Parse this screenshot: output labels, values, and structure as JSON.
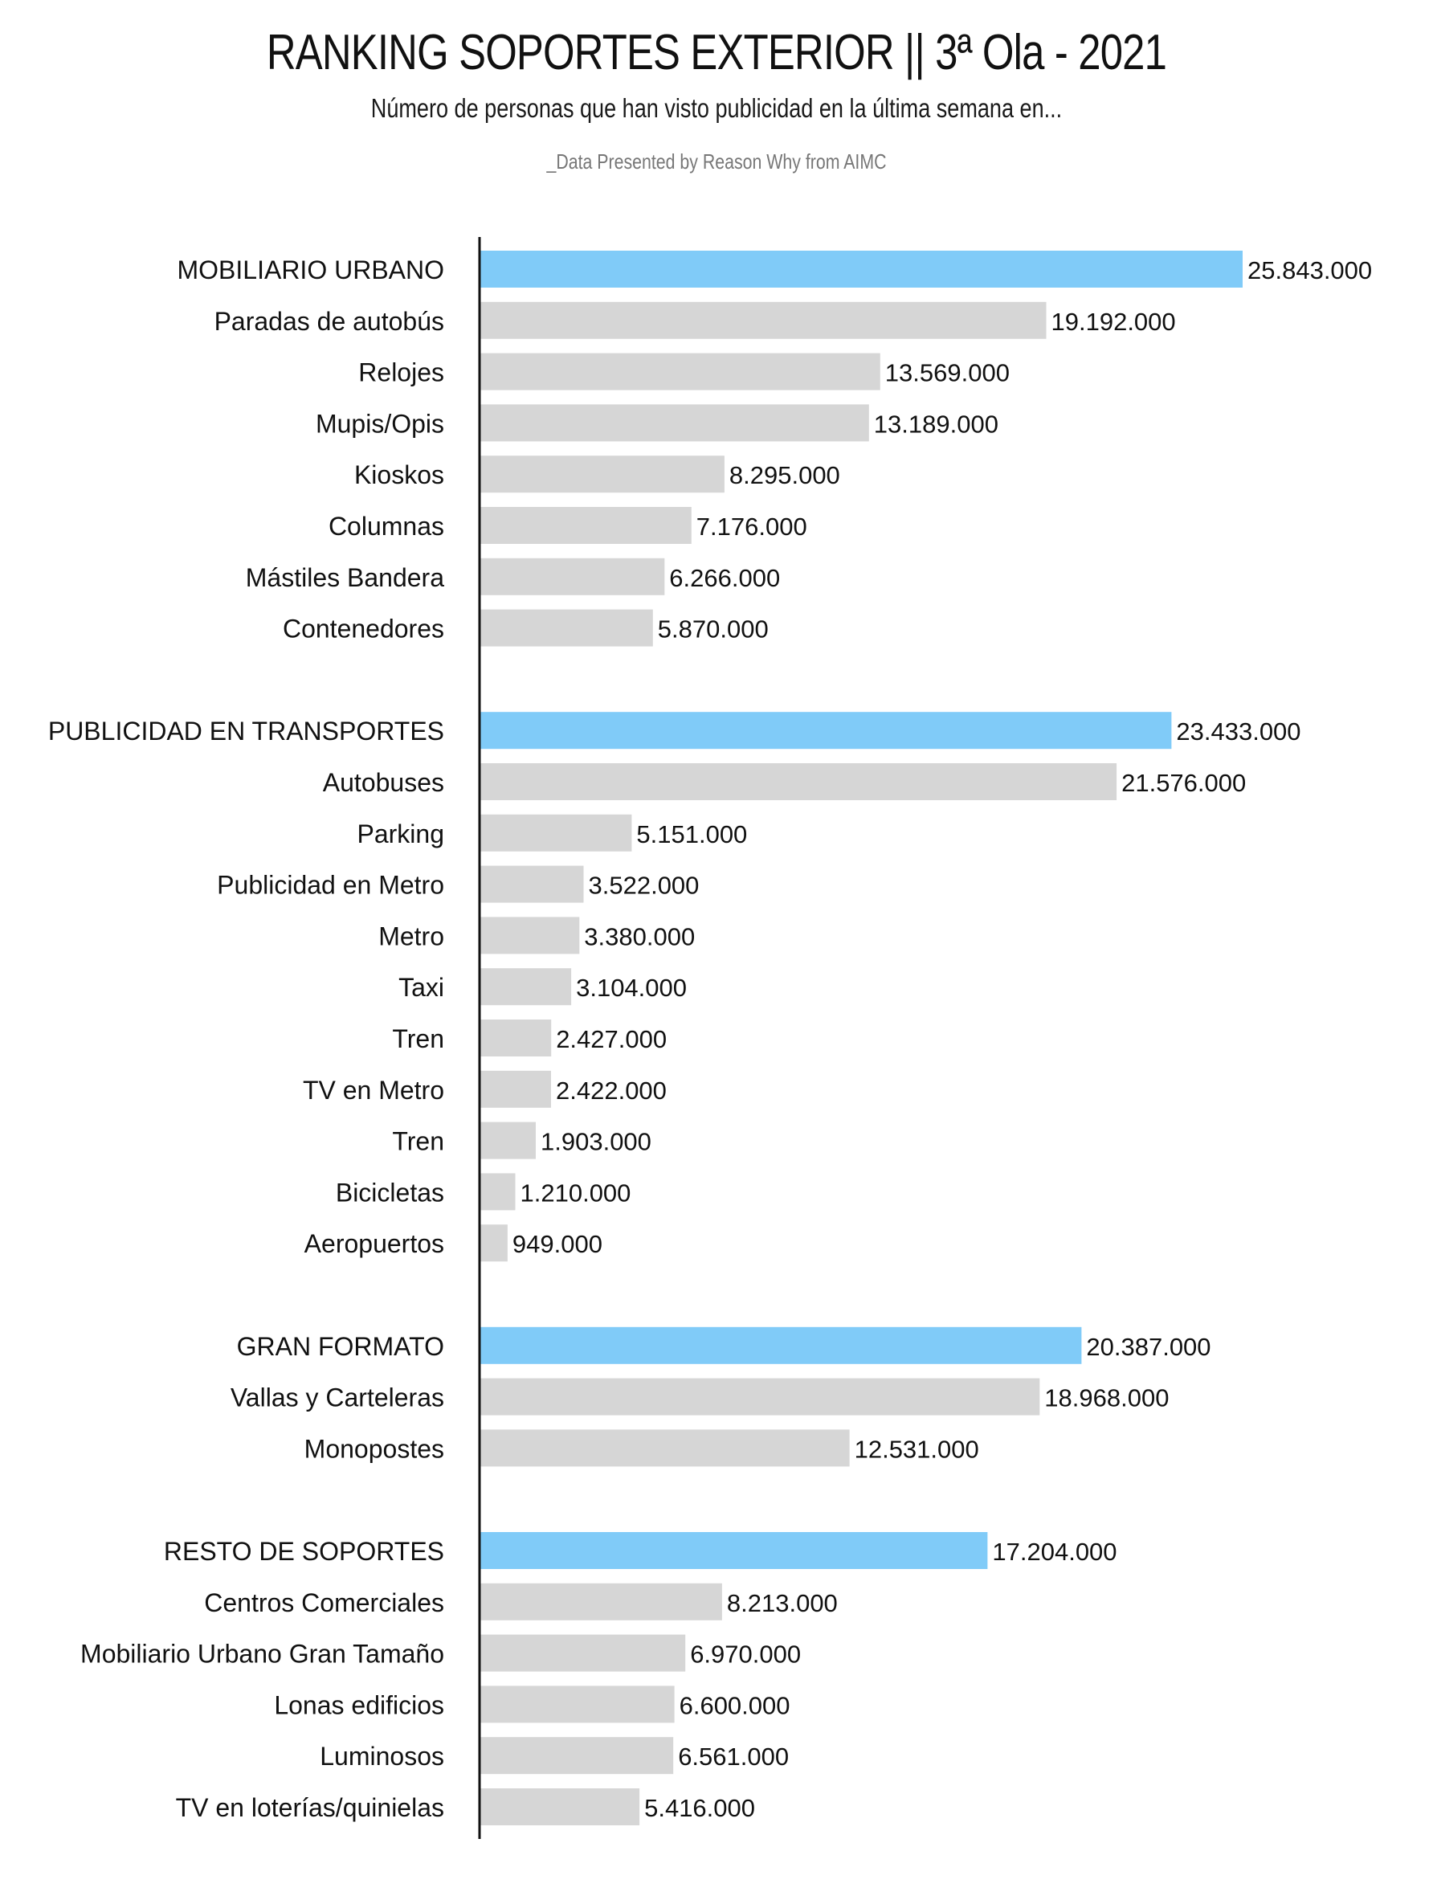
{
  "chart_data": {
    "type": "bar",
    "orientation": "horizontal",
    "title": "RANKING SOPORTES EXTERIOR || 3ª Ola - 2021",
    "subtitle": "Número de personas que han visto publicidad en la última semana en...",
    "source": "_Data Presented by Reason Why from AIMC",
    "grid": false,
    "colors": {
      "category": "#80CBF8",
      "item": "#D6D6D6",
      "axis": "#111111"
    },
    "groups": [
      {
        "label": "MOBILIARIO URBANO",
        "value": 25843000,
        "display": "25.843.000",
        "items": [
          {
            "label": "Paradas de autobús",
            "value": 19192000,
            "display": "19.192.000"
          },
          {
            "label": "Relojes",
            "value": 13569000,
            "display": "13.569.000"
          },
          {
            "label": "Mupis/Opis",
            "value": 13189000,
            "display": "13.189.000"
          },
          {
            "label": "Kioskos",
            "value": 8295000,
            "display": "8.295.000"
          },
          {
            "label": "Columnas",
            "value": 7176000,
            "display": "7.176.000"
          },
          {
            "label": "Mástiles Bandera",
            "value": 6266000,
            "display": "6.266.000"
          },
          {
            "label": "Contenedores",
            "value": 5870000,
            "display": "5.870.000"
          }
        ]
      },
      {
        "label": "PUBLICIDAD EN TRANSPORTES",
        "value": 23433000,
        "display": "23.433.000",
        "items": [
          {
            "label": "Autobuses",
            "value": 21576000,
            "display": "21.576.000"
          },
          {
            "label": "Parking",
            "value": 5151000,
            "display": "5.151.000"
          },
          {
            "label": "Publicidad en Metro",
            "value": 3522000,
            "display": "3.522.000"
          },
          {
            "label": "Metro",
            "value": 3380000,
            "display": "3.380.000"
          },
          {
            "label": "Taxi",
            "value": 3104000,
            "display": "3.104.000"
          },
          {
            "label": "Tren",
            "value": 2427000,
            "display": "2.427.000"
          },
          {
            "label": "TV en Metro",
            "value": 2422000,
            "display": "2.422.000"
          },
          {
            "label": "Tren",
            "value": 1903000,
            "display": "1.903.000"
          },
          {
            "label": "Bicicletas",
            "value": 1210000,
            "display": "1.210.000"
          },
          {
            "label": "Aeropuertos",
            "value": 949000,
            "display": "949.000"
          }
        ]
      },
      {
        "label": "GRAN FORMATO",
        "value": 20387000,
        "display": "20.387.000",
        "items": [
          {
            "label": "Vallas y Carteleras",
            "value": 18968000,
            "display": "18.968.000"
          },
          {
            "label": "Monopostes",
            "value": 12531000,
            "display": "12.531.000"
          }
        ]
      },
      {
        "label": "RESTO DE SOPORTES",
        "value": 17204000,
        "display": "17.204.000",
        "items": [
          {
            "label": "Centros Comerciales",
            "value": 8213000,
            "display": "8.213.000"
          },
          {
            "label": "Mobiliario Urbano Gran Tamaño",
            "value": 6970000,
            "display": "6.970.000"
          },
          {
            "label": "Lonas edificios",
            "value": 6600000,
            "display": "6.600.000"
          },
          {
            "label": "Luminosos",
            "value": 6561000,
            "display": "6.561.000"
          },
          {
            "label": "TV en loterías/quinielas",
            "value": 5416000,
            "display": "5.416.000"
          }
        ]
      }
    ]
  }
}
